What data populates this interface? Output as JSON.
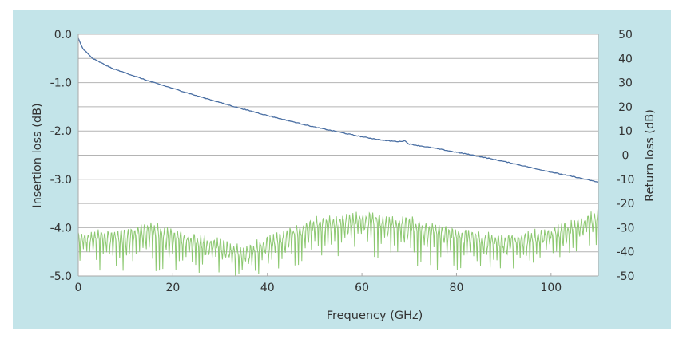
{
  "colors": {
    "panel_bg": "#c3e4e9",
    "plot_bg": "#ffffff",
    "grid": "#b4b4b4",
    "insertion_loss": "#4a6fa3",
    "return_loss": "#8cc870",
    "text": "#333333"
  },
  "chart_data": {
    "type": "line",
    "title": "",
    "xlabel": "Frequency (GHz)",
    "ylabel": "Insertion loss (dB)",
    "y2label": "Return loss (dB)",
    "xlim": [
      0,
      110
    ],
    "ylim": [
      -5.0,
      0.0
    ],
    "y2lim": [
      -50,
      50
    ],
    "grid": true,
    "legend": "none",
    "x_ticks": [
      "0",
      "20",
      "40",
      "60",
      "80",
      "100"
    ],
    "x_tick_values": [
      0,
      20,
      40,
      60,
      80,
      100
    ],
    "y_ticks": [
      "0.0",
      "-1.0",
      "-2.0",
      "-3.0",
      "-4.0",
      "-5.0"
    ],
    "y_tick_values": [
      0,
      -1,
      -2,
      -3,
      -4,
      -5
    ],
    "y2_ticks": [
      "50",
      "40",
      "30",
      "20",
      "10",
      "0",
      "-10",
      "-20",
      "-30",
      "-40",
      "-50"
    ],
    "y2_tick_values": [
      50,
      40,
      30,
      20,
      10,
      0,
      -10,
      -20,
      -30,
      -40,
      -50
    ],
    "series": [
      {
        "name": "Insertion loss",
        "axis": "left",
        "x": [
          0,
          0.5,
          1,
          2,
          3,
          5,
          7,
          10,
          15,
          20,
          25,
          30,
          32,
          35,
          40,
          45,
          50,
          55,
          60,
          65,
          68,
          69,
          70,
          75,
          80,
          84,
          90,
          95,
          100,
          105,
          110
        ],
        "values": [
          -0.08,
          -0.2,
          -0.3,
          -0.4,
          -0.5,
          -0.6,
          -0.7,
          -0.8,
          -0.97,
          -1.12,
          -1.27,
          -1.41,
          -1.47,
          -1.55,
          -1.68,
          -1.8,
          -1.92,
          -2.02,
          -2.12,
          -2.2,
          -2.22,
          -2.2,
          -2.27,
          -2.35,
          -2.44,
          -2.51,
          -2.63,
          -2.74,
          -2.85,
          -2.95,
          -3.06
        ]
      },
      {
        "name": "Return loss",
        "axis": "right",
        "x": [
          0,
          5,
          10,
          15,
          20,
          25,
          30,
          35,
          40,
          45,
          50,
          55,
          60,
          65,
          70,
          75,
          80,
          85,
          90,
          95,
          100,
          105,
          110
        ],
        "upper_envelope": [
          -30,
          -30,
          -30,
          -27,
          -30,
          -32,
          -34,
          -37,
          -33,
          -29,
          -25,
          -24,
          -23,
          -24,
          -25,
          -27,
          -29,
          -31,
          -32,
          -31,
          -29,
          -26,
          -22
        ],
        "lower_envelope": [
          -45,
          -48,
          -50,
          -47,
          -50,
          -50,
          -50,
          -50,
          -50,
          -48,
          -46,
          -44,
          -42,
          -44,
          -46,
          -50,
          -50,
          -50,
          -48,
          -47,
          -45,
          -43,
          -38
        ],
        "oscillation_period_ghz": 0.7
      }
    ]
  }
}
